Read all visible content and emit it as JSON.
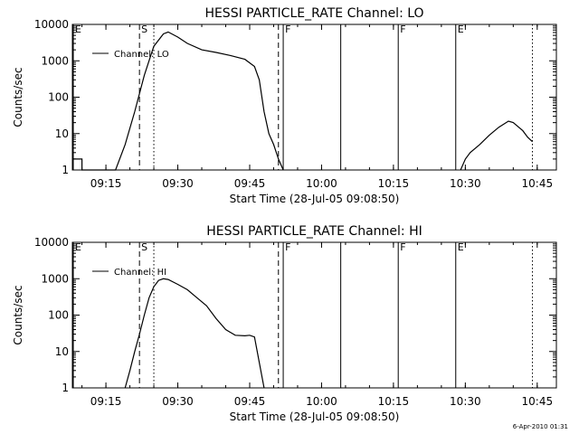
{
  "footer": {
    "timestamp": "6-Apr-2010 01:31"
  },
  "chart_data": [
    {
      "type": "line",
      "title": "HESSI PARTICLE_RATE Channel: LO",
      "xlabel": "Start Time (28-Jul-05 09:08:50)",
      "ylabel": "Counts/sec",
      "y_scale": "log",
      "ylim": [
        1,
        10000
      ],
      "xlim": [
        "09:08",
        "10:49"
      ],
      "x_ticks": [
        "09:15",
        "09:30",
        "09:45",
        "10:00",
        "10:15",
        "10:30",
        "10:45"
      ],
      "y_ticks": [
        "1",
        "10",
        "100",
        "1000",
        "10000"
      ],
      "legend": {
        "position": "top-left",
        "entries": [
          "Channel: LO"
        ]
      },
      "markers": [
        {
          "label": "E",
          "time": "09:08",
          "style": "solid"
        },
        {
          "label": "S",
          "time": "09:22",
          "style": "dashed"
        },
        {
          "label": "",
          "time": "09:25",
          "style": "dotted"
        },
        {
          "label": "",
          "time": "09:51",
          "style": "dashed"
        },
        {
          "label": "F",
          "time": "09:52",
          "style": "solid"
        },
        {
          "label": "",
          "time": "10:04",
          "style": "solid"
        },
        {
          "label": "F",
          "time": "10:16",
          "style": "solid"
        },
        {
          "label": "E",
          "time": "10:28",
          "style": "solid"
        },
        {
          "label": "",
          "time": "10:44",
          "style": "dotted"
        }
      ],
      "series": [
        {
          "name": "Channel: LO",
          "segments": [
            [
              [
                "09:08",
                2
              ],
              [
                "09:10",
                2
              ],
              [
                "09:10",
                1
              ],
              [
                "09:17",
                1
              ],
              [
                "09:19",
                5
              ],
              [
                "09:21",
                40
              ],
              [
                "09:23",
                400
              ],
              [
                "09:25",
                2500
              ],
              [
                "09:27",
                5500
              ],
              [
                "09:28",
                6200
              ],
              [
                "09:30",
                4500
              ],
              [
                "09:32",
                3000
              ],
              [
                "09:35",
                2000
              ],
              [
                "09:38",
                1700
              ],
              [
                "09:41",
                1400
              ],
              [
                "09:44",
                1100
              ],
              [
                "09:46",
                700
              ],
              [
                "09:47",
                300
              ],
              [
                "09:48",
                40
              ],
              [
                "09:49",
                10
              ],
              [
                "09:50",
                5
              ],
              [
                "09:51",
                2
              ],
              [
                "09:52",
                1
              ]
            ],
            [
              [
                "10:29",
                1
              ],
              [
                "10:30",
                2
              ],
              [
                "10:31",
                3
              ],
              [
                "10:33",
                5
              ],
              [
                "10:35",
                9
              ],
              [
                "10:37",
                15
              ],
              [
                "10:39",
                22
              ],
              [
                "10:40",
                20
              ],
              [
                "10:42",
                12
              ],
              [
                "10:43",
                8
              ],
              [
                "10:44",
                6
              ]
            ]
          ]
        }
      ]
    },
    {
      "type": "line",
      "title": "HESSI PARTICLE_RATE Channel: HI",
      "xlabel": "Start Time (28-Jul-05 09:08:50)",
      "ylabel": "Counts/sec",
      "y_scale": "log",
      "ylim": [
        1,
        10000
      ],
      "xlim": [
        "09:08",
        "10:49"
      ],
      "x_ticks": [
        "09:15",
        "09:30",
        "09:45",
        "10:00",
        "10:15",
        "10:30",
        "10:45"
      ],
      "y_ticks": [
        "1",
        "10",
        "100",
        "1000",
        "10000"
      ],
      "legend": {
        "position": "top-left",
        "entries": [
          "Channel: HI"
        ]
      },
      "markers": [
        {
          "label": "E",
          "time": "09:08",
          "style": "solid"
        },
        {
          "label": "S",
          "time": "09:22",
          "style": "dashed"
        },
        {
          "label": "",
          "time": "09:25",
          "style": "dotted"
        },
        {
          "label": "",
          "time": "09:51",
          "style": "dashed"
        },
        {
          "label": "F",
          "time": "09:52",
          "style": "solid"
        },
        {
          "label": "",
          "time": "10:04",
          "style": "solid"
        },
        {
          "label": "F",
          "time": "10:16",
          "style": "solid"
        },
        {
          "label": "E",
          "time": "10:28",
          "style": "solid"
        },
        {
          "label": "",
          "time": "10:44",
          "style": "dotted"
        }
      ],
      "series": [
        {
          "name": "Channel: HI",
          "segments": [
            [
              [
                "09:19",
                1
              ],
              [
                "09:20",
                3
              ],
              [
                "09:21",
                10
              ],
              [
                "09:22",
                30
              ],
              [
                "09:23",
                100
              ],
              [
                "09:24",
                300
              ],
              [
                "09:25",
                600
              ],
              [
                "09:26",
                900
              ],
              [
                "09:27",
                1000
              ],
              [
                "09:28",
                950
              ],
              [
                "09:30",
                700
              ],
              [
                "09:32",
                500
              ],
              [
                "09:34",
                300
              ],
              [
                "09:36",
                180
              ],
              [
                "09:38",
                80
              ],
              [
                "09:40",
                40
              ],
              [
                "09:42",
                28
              ],
              [
                "09:44",
                27
              ],
              [
                "09:45",
                28
              ],
              [
                "09:46",
                25
              ],
              [
                "09:47",
                5
              ],
              [
                "09:48",
                1
              ]
            ]
          ]
        }
      ]
    }
  ]
}
